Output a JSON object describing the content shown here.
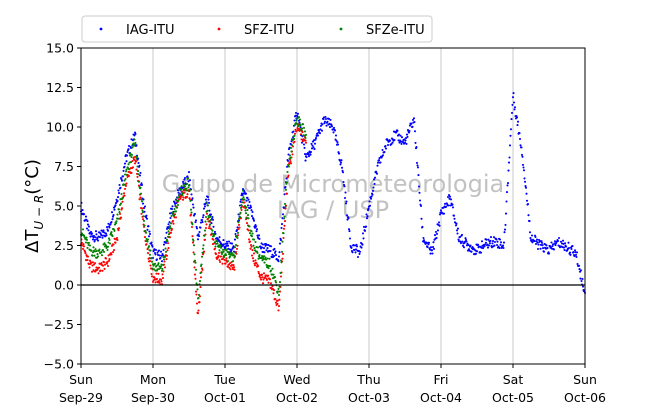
{
  "chart_data": {
    "type": "scatter",
    "ylabel": "ΔT_{U−R}(°C)",
    "ylabel_main": "ΔT",
    "ylabel_sub": "U − R",
    "ylabel_unit": "(°C)",
    "ylim": [
      -5.0,
      15.0
    ],
    "xlim_days": [
      0,
      7
    ],
    "yticks": [
      -5.0,
      -2.5,
      0.0,
      2.5,
      5.0,
      7.5,
      10.0,
      12.5,
      15.0
    ],
    "yticks_labels": [
      "−5.0",
      "−2.5",
      "0.0",
      "2.5",
      "5.0",
      "7.5",
      "10.0",
      "12.5",
      "15.0"
    ],
    "xtick_labels": [
      {
        "day": "Sun",
        "date": "Sep-29"
      },
      {
        "day": "Mon",
        "date": "Sep-30"
      },
      {
        "day": "Tue",
        "date": "Oct-01"
      },
      {
        "day": "Wed",
        "date": "Oct-02"
      },
      {
        "day": "Thu",
        "date": "Oct-03"
      },
      {
        "day": "Fri",
        "date": "Oct-04"
      },
      {
        "day": "Sat",
        "date": "Oct-05"
      },
      {
        "day": "Sun",
        "date": "Oct-06"
      }
    ],
    "grid": "vertical",
    "zero_line": true,
    "legend_position": "top-left-outside",
    "watermark": [
      "Grupo de Micrometeorologia",
      "IAG / USP"
    ],
    "series": [
      {
        "name": "IAG-ITU",
        "color": "#0000ff",
        "x": [
          "Sep-29 00:00",
          "Sep-29 03:00",
          "Sep-29 06:00",
          "Sep-29 09:00",
          "Sep-29 12:00",
          "Sep-29 15:00",
          "Sep-29 18:00",
          "Sep-29 21:00",
          "Sep-30 00:00",
          "Sep-30 03:00",
          "Sep-30 06:00",
          "Sep-30 09:00",
          "Sep-30 12:00",
          "Sep-30 15:00",
          "Sep-30 18:00",
          "Sep-30 21:00",
          "Oct-01 00:00",
          "Oct-01 03:00",
          "Oct-01 06:00",
          "Oct-01 09:00",
          "Oct-01 12:00",
          "Oct-01 15:00",
          "Oct-01 18:00",
          "Oct-01 21:00",
          "Oct-02 00:00",
          "Oct-02 03:00",
          "Oct-02 06:00",
          "Oct-02 09:00",
          "Oct-02 12:00",
          "Oct-02 15:00",
          "Oct-02 18:00",
          "Oct-02 21:00",
          "Oct-03 00:00",
          "Oct-03 03:00",
          "Oct-03 06:00",
          "Oct-03 09:00",
          "Oct-03 12:00",
          "Oct-03 15:00",
          "Oct-03 18:00",
          "Oct-03 21:00",
          "Oct-04 00:00",
          "Oct-04 03:00",
          "Oct-04 06:00",
          "Oct-04 09:00",
          "Oct-04 12:00",
          "Oct-04 15:00",
          "Oct-04 18:00",
          "Oct-04 21:00",
          "Oct-05 00:00",
          "Oct-05 03:00",
          "Oct-05 06:00",
          "Oct-05 09:00",
          "Oct-05 12:00",
          "Oct-05 15:00",
          "Oct-05 18:00",
          "Oct-05 21:00",
          "Oct-06 00:00"
        ],
        "y": [
          5.0,
          3.2,
          3.0,
          3.5,
          5.5,
          8.0,
          9.5,
          5.0,
          2.0,
          1.8,
          4.5,
          6.0,
          6.8,
          3.0,
          5.5,
          3.0,
          2.5,
          2.3,
          6.0,
          4.5,
          2.4,
          2.2,
          1.7,
          8.0,
          11.0,
          8.0,
          9.0,
          10.4,
          10.0,
          7.5,
          2.5,
          2.0,
          5.0,
          7.5,
          9.0,
          9.5,
          9.0,
          10.5,
          3.0,
          2.0,
          4.5,
          5.5,
          3.0,
          2.5,
          2.2,
          2.6,
          2.8,
          2.5,
          12.0,
          8.5,
          3.0,
          2.5,
          2.2,
          2.7,
          2.4,
          2.0,
          -0.5
        ]
      },
      {
        "name": "SFZ-ITU",
        "color": "#ff0000",
        "x": [
          "Sep-29 00:00",
          "Sep-29 03:00",
          "Sep-29 06:00",
          "Sep-29 09:00",
          "Sep-29 12:00",
          "Sep-29 15:00",
          "Sep-29 18:00",
          "Sep-29 21:00",
          "Sep-30 00:00",
          "Sep-30 03:00",
          "Sep-30 06:00",
          "Sep-30 09:00",
          "Sep-30 12:00",
          "Sep-30 15:00",
          "Sep-30 18:00",
          "Sep-30 21:00",
          "Oct-01 00:00",
          "Oct-01 03:00",
          "Oct-01 06:00",
          "Oct-01 09:00",
          "Oct-01 12:00",
          "Oct-01 15:00",
          "Oct-01 18:00",
          "Oct-01 21:00",
          "Oct-02 00:00",
          "Oct-02 03:00"
        ],
        "y": [
          2.8,
          1.2,
          1.0,
          1.5,
          3.0,
          6.5,
          8.0,
          3.5,
          0.5,
          0.3,
          3.5,
          5.5,
          6.0,
          -2.0,
          4.5,
          2.0,
          1.5,
          1.0,
          5.5,
          2.0,
          0.5,
          0.2,
          -1.5,
          7.0,
          10.0,
          9.0
        ]
      },
      {
        "name": "SFZe-ITU",
        "color": "#008000",
        "x": [
          "Sep-29 00:00",
          "Sep-29 03:00",
          "Sep-29 06:00",
          "Sep-29 09:00",
          "Sep-29 12:00",
          "Sep-29 15:00",
          "Sep-29 18:00",
          "Sep-29 21:00",
          "Sep-30 00:00",
          "Sep-30 03:00",
          "Sep-30 06:00",
          "Sep-30 09:00",
          "Sep-30 12:00",
          "Sep-30 15:00",
          "Sep-30 18:00",
          "Sep-30 21:00",
          "Oct-01 00:00",
          "Oct-01 03:00",
          "Oct-01 06:00",
          "Oct-01 09:00",
          "Oct-01 12:00",
          "Oct-01 15:00",
          "Oct-01 18:00",
          "Oct-01 21:00",
          "Oct-02 00:00",
          "Oct-02 03:00"
        ],
        "y": [
          3.5,
          2.2,
          2.0,
          2.5,
          4.0,
          7.0,
          9.0,
          4.0,
          1.2,
          1.0,
          4.0,
          5.8,
          6.5,
          -1.0,
          5.0,
          2.5,
          2.0,
          1.6,
          5.8,
          3.0,
          1.6,
          1.3,
          -0.5,
          7.5,
          10.5,
          9.5
        ]
      }
    ]
  }
}
